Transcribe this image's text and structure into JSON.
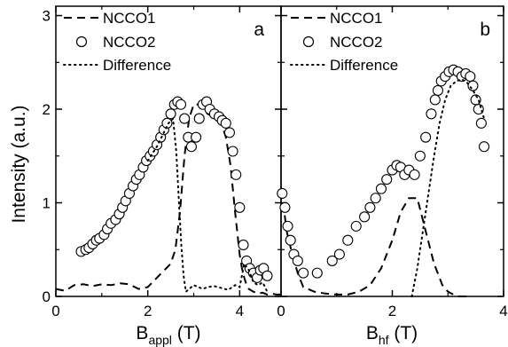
{
  "chart_data": [
    {
      "type": "scatter",
      "panel": "a",
      "xlabel": "B",
      "xlabel_sub": "appl",
      "xlabel_unit": " (T)",
      "ylabel": "Intensity (a.u.)",
      "xlim": [
        0,
        4.9
      ],
      "ylim": [
        0,
        3.1
      ],
      "xticks": [
        "0",
        "2",
        "4"
      ],
      "yticks": [
        "0",
        "1",
        "2",
        "3"
      ],
      "xtick_values": [
        0,
        2,
        4
      ],
      "ytick_values": [
        0,
        1,
        2,
        3
      ],
      "legend_position": "top-left",
      "series": [
        {
          "name": "NCCO1",
          "style": "dashed-line",
          "x": [
            0.0,
            0.2,
            0.4,
            0.6,
            0.8,
            1.0,
            1.2,
            1.4,
            1.6,
            1.8,
            2.0,
            2.2,
            2.4,
            2.5,
            2.6,
            2.7,
            2.8,
            2.9,
            3.0,
            3.1,
            3.2,
            3.3,
            3.4,
            3.5,
            3.6,
            3.7,
            3.8,
            3.9,
            4.0,
            4.05,
            4.1,
            4.15,
            4.2,
            4.3,
            4.4,
            4.5,
            4.6,
            4.7,
            4.8,
            4.9
          ],
          "y": [
            0.08,
            0.06,
            0.12,
            0.13,
            0.11,
            0.13,
            0.12,
            0.14,
            0.13,
            0.08,
            0.1,
            0.2,
            0.3,
            0.35,
            0.5,
            0.9,
            1.5,
            1.9,
            2.05,
            2.05,
            2.0,
            1.95,
            1.93,
            1.9,
            1.85,
            1.7,
            1.4,
            0.9,
            0.45,
            0.3,
            0.2,
            0.12,
            0.08,
            0.05,
            0.03,
            0.04,
            0.02,
            0.03,
            0.02,
            0.02
          ]
        },
        {
          "name": "NCCO2",
          "style": "open-circle",
          "x": [
            0.55,
            0.65,
            0.72,
            0.8,
            0.88,
            0.95,
            1.05,
            1.12,
            1.2,
            1.3,
            1.38,
            1.45,
            1.52,
            1.6,
            1.68,
            1.75,
            1.82,
            1.9,
            1.97,
            2.05,
            2.12,
            2.2,
            2.28,
            2.35,
            2.42,
            2.5,
            2.58,
            2.65,
            2.72,
            2.8,
            2.88,
            2.95,
            3.05,
            3.12,
            3.2,
            3.28,
            3.35,
            3.45,
            3.55,
            3.62,
            3.7,
            3.78,
            3.85,
            3.92,
            4.0,
            4.08,
            4.15,
            4.22,
            4.3,
            4.38,
            4.45,
            4.52,
            4.6
          ],
          "y": [
            0.48,
            0.5,
            0.52,
            0.56,
            0.6,
            0.62,
            0.66,
            0.72,
            0.78,
            0.82,
            0.88,
            0.95,
            1.02,
            1.1,
            1.18,
            1.25,
            1.3,
            1.38,
            1.45,
            1.5,
            1.55,
            1.62,
            1.7,
            1.78,
            1.85,
            1.95,
            2.05,
            2.08,
            2.05,
            1.9,
            1.7,
            1.6,
            1.7,
            1.9,
            2.05,
            2.08,
            2.0,
            1.95,
            1.92,
            1.88,
            1.85,
            1.75,
            1.55,
            1.3,
            0.95,
            0.55,
            0.38,
            0.3,
            0.25,
            0.2,
            0.28,
            0.3,
            0.22
          ]
        },
        {
          "name": "Difference",
          "style": "dotted-line",
          "x": [
            2.0,
            2.2,
            2.35,
            2.45,
            2.55,
            2.62,
            2.68,
            2.73,
            2.78,
            2.83,
            2.9,
            3.0,
            3.1,
            3.2,
            3.3,
            3.45,
            3.6,
            3.75,
            3.9,
            4.0,
            4.1,
            4.2,
            4.3,
            4.4,
            4.5,
            4.6
          ],
          "y": [
            1.45,
            1.6,
            1.75,
            1.85,
            1.9,
            1.55,
            1.0,
            0.55,
            0.22,
            0.05,
            0.08,
            0.12,
            0.1,
            0.08,
            0.1,
            0.11,
            0.09,
            0.07,
            0.12,
            0.1,
            0.35,
            0.28,
            0.15,
            0.12,
            0.15,
            0.05
          ]
        }
      ]
    },
    {
      "type": "scatter",
      "panel": "b",
      "xlabel": "B",
      "xlabel_sub": "hf",
      "xlabel_unit": " (T)",
      "xlim": [
        0,
        4.0
      ],
      "ylim": [
        0,
        3.1
      ],
      "xticks": [
        "0",
        "2",
        "4"
      ],
      "xtick_values": [
        0,
        2,
        4
      ],
      "legend_position": "top-left",
      "series": [
        {
          "name": "NCCO1",
          "style": "dashed-line",
          "x": [
            0.0,
            0.05,
            0.1,
            0.2,
            0.3,
            0.4,
            0.6,
            0.8,
            1.0,
            1.2,
            1.4,
            1.6,
            1.8,
            2.0,
            2.15,
            2.3,
            2.45,
            2.6,
            2.75,
            2.9,
            3.0,
            3.1,
            3.2,
            3.3,
            3.4
          ],
          "y": [
            1.0,
            0.95,
            0.7,
            0.45,
            0.25,
            0.1,
            0.05,
            0.03,
            0.02,
            0.02,
            0.05,
            0.12,
            0.3,
            0.6,
            0.9,
            1.05,
            1.05,
            0.7,
            0.35,
            0.12,
            0.05,
            0.02,
            0.0,
            0.0,
            0.0
          ]
        },
        {
          "name": "NCCO2",
          "style": "open-circle",
          "x": [
            0.02,
            0.07,
            0.12,
            0.17,
            0.23,
            0.3,
            0.4,
            0.65,
            0.92,
            1.05,
            1.2,
            1.35,
            1.5,
            1.6,
            1.7,
            1.8,
            1.9,
            2.0,
            2.08,
            2.15,
            2.22,
            2.3,
            2.4,
            2.5,
            2.6,
            2.7,
            2.77,
            2.82,
            2.88,
            2.95,
            3.02,
            3.1,
            3.18,
            3.25,
            3.32,
            3.4,
            3.45,
            3.5,
            3.55,
            3.6,
            3.65
          ],
          "y": [
            1.1,
            0.95,
            0.75,
            0.6,
            0.45,
            0.38,
            0.25,
            0.25,
            0.38,
            0.45,
            0.6,
            0.75,
            0.85,
            0.95,
            1.05,
            1.15,
            1.25,
            1.35,
            1.4,
            1.38,
            1.3,
            1.35,
            1.3,
            1.5,
            1.7,
            1.95,
            2.1,
            2.2,
            2.3,
            2.35,
            2.4,
            2.42,
            2.4,
            2.35,
            2.38,
            2.35,
            2.25,
            2.1,
            2.0,
            1.85,
            1.6
          ]
        },
        {
          "name": "Difference",
          "style": "dotted-line",
          "x": [
            2.35,
            2.45,
            2.55,
            2.65,
            2.75,
            2.85,
            2.95,
            3.05,
            3.15,
            3.25,
            3.35,
            3.45,
            3.55,
            3.65
          ],
          "y": [
            0.0,
            0.3,
            0.7,
            1.1,
            1.5,
            1.85,
            2.1,
            2.25,
            2.3,
            2.32,
            2.28,
            2.2,
            2.1,
            1.9
          ]
        }
      ]
    }
  ]
}
